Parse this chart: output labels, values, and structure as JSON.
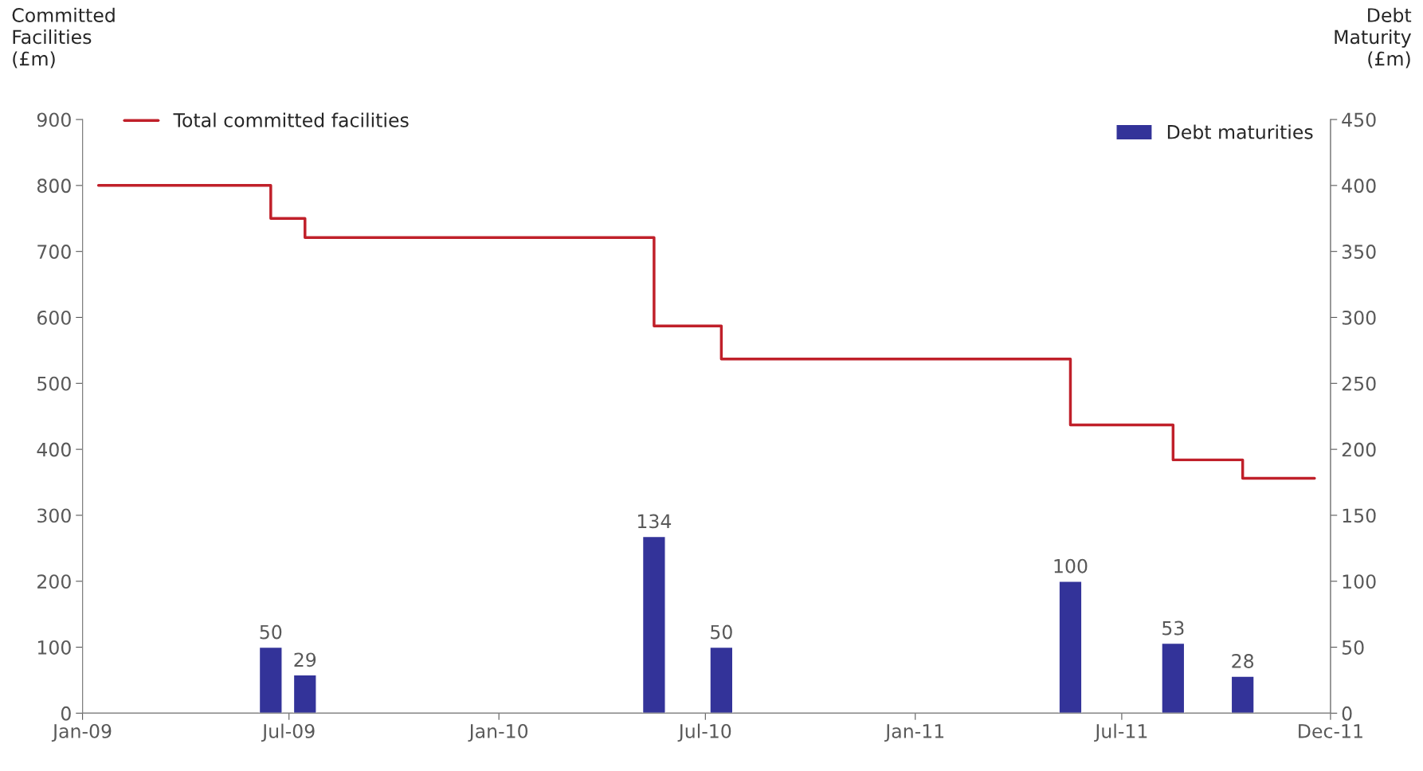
{
  "chart_data": {
    "type": "step",
    "ylabel": "Committed\nFacilities\n(£m)",
    "y2label": "Debt\nMaturity\n(£m)",
    "xlim": [
      "2009-01-01",
      "2011-12-31"
    ],
    "xticks": [
      {
        "value": "2009-01-01",
        "label": "Jan-09"
      },
      {
        "value": "2009-07-01",
        "label": "Jul-09"
      },
      {
        "value": "2010-01-01",
        "label": "Jan-10"
      },
      {
        "value": "2010-07-01",
        "label": "Jul-10"
      },
      {
        "value": "2011-01-01",
        "label": "Jan-11"
      },
      {
        "value": "2011-07-01",
        "label": "Jul-11"
      },
      {
        "value": "2011-12-31",
        "label": "Dec-11"
      }
    ],
    "ylim": [
      0,
      900
    ],
    "yticks": [
      0,
      100,
      200,
      300,
      400,
      500,
      600,
      700,
      800,
      900
    ],
    "y2lim": [
      0,
      450
    ],
    "y2ticks": [
      0,
      50,
      100,
      150,
      200,
      250,
      300,
      350,
      400,
      450
    ],
    "grid": false,
    "legend": "top",
    "series": [
      {
        "name": "Total committed facilities",
        "color": "#c0202a",
        "x": [
          "2009-01-15",
          "2009-06-15",
          "2009-07-15",
          "2010-05-17",
          "2010-07-15",
          "2011-05-17",
          "2011-08-15",
          "2011-10-15",
          "2011-12-17"
        ],
        "values": [
          800,
          750,
          721,
          587,
          537,
          437,
          384,
          356,
          356
        ]
      },
      {
        "name": "Debt maturities",
        "type": "bar",
        "axis": "y2",
        "color": "#333399",
        "x": [
          "2009-06-15",
          "2009-07-15",
          "2010-05-17",
          "2010-07-15",
          "2011-05-17",
          "2011-08-15",
          "2011-10-15"
        ],
        "values": [
          50,
          29,
          134,
          50,
          100,
          53,
          28
        ],
        "value_labels": [
          "50",
          "29",
          "134",
          "50",
          "100",
          "53",
          "28"
        ]
      }
    ]
  }
}
